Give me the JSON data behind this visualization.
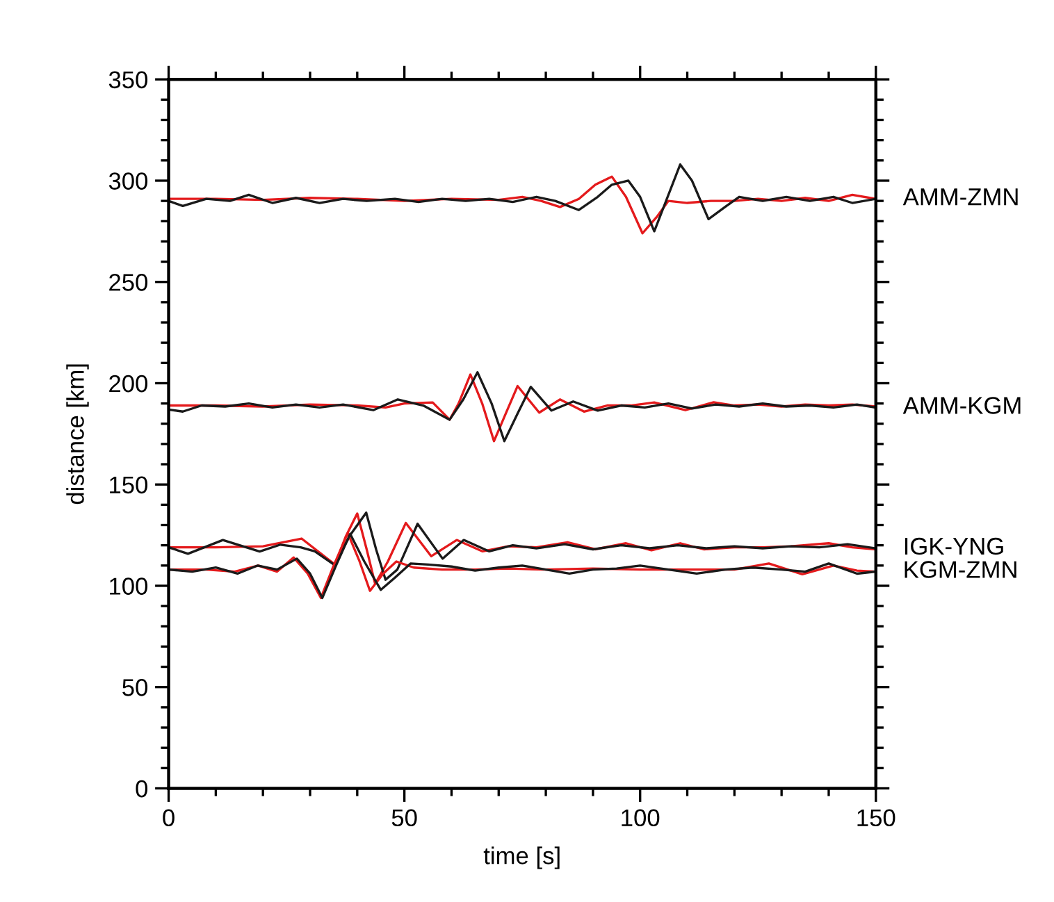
{
  "chart_data": {
    "type": "line",
    "xlabel": "time [s]",
    "ylabel": "distance [km]",
    "xlim": [
      0,
      150
    ],
    "ylim": [
      0,
      350
    ],
    "xticks": [
      0,
      {
        "value": 10,
        "label": null
      },
      {
        "value": 20,
        "label": null
      },
      {
        "value": 30,
        "label": null
      },
      {
        "value": 40,
        "label": null
      },
      50,
      {
        "value": 60,
        "label": null
      },
      {
        "value": 70,
        "label": null
      },
      {
        "value": 80,
        "label": null
      },
      {
        "value": 90,
        "label": null
      },
      100,
      {
        "value": 110,
        "label": null
      },
      {
        "value": 120,
        "label": null
      },
      {
        "value": 130,
        "label": null
      },
      {
        "value": 140,
        "label": null
      },
      150
    ],
    "yticks": [
      0,
      {
        "value": 10,
        "label": null
      },
      {
        "value": 20,
        "label": null
      },
      {
        "value": 30,
        "label": null
      },
      {
        "value": 40,
        "label": null
      },
      50,
      {
        "value": 60,
        "label": null
      },
      {
        "value": 70,
        "label": null
      },
      {
        "value": 80,
        "label": null
      },
      {
        "value": 90,
        "label": null
      },
      100,
      {
        "value": 110,
        "label": null
      },
      {
        "value": 120,
        "label": null
      },
      {
        "value": 130,
        "label": null
      },
      {
        "value": 140,
        "label": null
      },
      150,
      {
        "value": 160,
        "label": null
      },
      {
        "value": 170,
        "label": null
      },
      {
        "value": 180,
        "label": null
      },
      {
        "value": 190,
        "label": null
      },
      200,
      {
        "value": 210,
        "label": null
      },
      {
        "value": 220,
        "label": null
      },
      {
        "value": 230,
        "label": null
      },
      {
        "value": 240,
        "label": null
      },
      250,
      {
        "value": 260,
        "label": null
      },
      {
        "value": 270,
        "label": null
      },
      {
        "value": 280,
        "label": null
      },
      {
        "value": 290,
        "label": null
      },
      300,
      {
        "value": 310,
        "label": null
      },
      {
        "value": 320,
        "label": null
      },
      {
        "value": 330,
        "label": null
      },
      {
        "value": 340,
        "label": null
      },
      350
    ],
    "marker": "none",
    "line_style": "solid",
    "series": [
      {
        "color": "#e41a1c",
        "x": [
          0,
          10,
          20,
          30,
          40,
          50,
          60,
          70,
          75,
          79,
          83,
          87,
          90.5,
          94,
          97,
          100.5,
          103.5,
          106,
          110,
          115,
          120,
          125,
          130,
          135,
          140,
          145,
          150
        ],
        "values": [
          291,
          291,
          290.5,
          291.5,
          291,
          290,
          291,
          290.5,
          292,
          290,
          287,
          291,
          298,
          302,
          292,
          274,
          282,
          290,
          289,
          290,
          290,
          291,
          290,
          291.5,
          290,
          293,
          291
        ]
      },
      {
        "name": "AMM-ZMN",
        "color": "#1a1a1a",
        "x": [
          0,
          3,
          8,
          13,
          17,
          22,
          27,
          32,
          37,
          42,
          48,
          53,
          58,
          63,
          68,
          73,
          78,
          82,
          87,
          91,
          94,
          97.5,
          100,
          103,
          105.5,
          108.5,
          111,
          114.5,
          118,
          121,
          126,
          131,
          136,
          141,
          145,
          150
        ],
        "values": [
          290,
          287.5,
          291,
          290,
          293,
          289,
          291.5,
          289,
          291,
          290,
          291,
          289.5,
          291,
          290,
          291,
          289.5,
          292,
          290,
          285.5,
          292,
          298,
          300,
          292,
          275,
          290,
          308,
          300,
          281,
          287,
          292,
          290,
          292,
          290,
          292,
          289,
          291
        ]
      },
      {
        "color": "#e41a1c",
        "x": [
          0,
          10,
          20,
          30,
          40,
          46,
          50,
          56,
          59.6,
          61.5,
          64,
          66.5,
          69,
          71.5,
          74,
          78.6,
          83,
          88.1,
          93,
          98,
          103,
          109.6,
          115.6,
          120,
          125,
          130,
          135,
          140,
          145,
          150
        ],
        "values": [
          189,
          189,
          188.5,
          189.5,
          189,
          188,
          190,
          190.5,
          182,
          190,
          204.3,
          190,
          171.4,
          185,
          198.6,
          185.5,
          192,
          186,
          189,
          189,
          190.5,
          186.7,
          190.6,
          189,
          189.5,
          188.5,
          189.5,
          189,
          189.5,
          188.5
        ]
      },
      {
        "name": "AMM-KGM",
        "color": "#1a1a1a",
        "x": [
          0,
          3,
          7,
          12,
          17,
          22,
          27,
          32,
          37,
          43.4,
          48.6,
          54,
          59.6,
          62.5,
          65.5,
          68.5,
          71.2,
          74,
          76.8,
          81.2,
          85.8,
          91,
          96,
          101,
          106,
          111,
          116,
          121,
          126,
          131,
          136,
          141,
          146,
          150
        ],
        "values": [
          187,
          186,
          189,
          188.5,
          190,
          188,
          189.5,
          188,
          189.5,
          186.7,
          192,
          189,
          182,
          192,
          205.4,
          190,
          171.4,
          185,
          198.2,
          186.5,
          191,
          186.5,
          189,
          188,
          190,
          187.5,
          189.5,
          188.5,
          190,
          188.5,
          189,
          188,
          189.5,
          188
        ]
      },
      {
        "color": "#e41a1c",
        "x": [
          0,
          10,
          20,
          28.2,
          35.3,
          37.5,
          40,
          42,
          43.8,
          46.5,
          50.3,
          55.7,
          61.1,
          66.6,
          72,
          78,
          84.6,
          90.5,
          97,
          102.4,
          108.5,
          113.5,
          120,
          126,
          132,
          140,
          145,
          150
        ],
        "values": [
          119,
          119,
          119.5,
          123.3,
          110.4,
          124,
          135.7,
          118,
          101,
          112,
          131,
          114.6,
          122.6,
          117,
          119.5,
          119,
          121.5,
          118,
          121,
          117.5,
          121,
          118,
          119,
          119,
          119.5,
          121,
          119,
          118
        ]
      },
      {
        "name": "IGK-YNG",
        "color": "#1a1a1a",
        "x": [
          0,
          4.1,
          11.5,
          19.3,
          23.7,
          28,
          31,
          35.1,
          38.5,
          41.9,
          44,
          46,
          48.5,
          52.8,
          58.1,
          62.6,
          68,
          73,
          78,
          84,
          90,
          96,
          102,
          108,
          114,
          120,
          126,
          132,
          138,
          144,
          150
        ],
        "values": [
          119,
          115.8,
          122.6,
          116.9,
          120.3,
          119,
          117,
          110.4,
          125,
          136.1,
          118,
          103,
          108,
          130.6,
          113.4,
          122.6,
          117,
          120,
          118.5,
          120.5,
          118,
          120,
          118.5,
          120,
          118.5,
          119.5,
          118.5,
          119.5,
          119,
          120.5,
          118.5
        ]
      },
      {
        "color": "#e41a1c",
        "x": [
          0,
          8,
          14,
          19,
          23,
          26.5,
          29.5,
          32.3,
          35,
          38,
          40.5,
          42.7,
          45.5,
          48.3,
          52,
          58,
          65,
          72,
          80,
          90,
          100,
          110,
          120,
          127.3,
          134.4,
          141,
          146,
          150
        ],
        "values": [
          108,
          108,
          107,
          110,
          107,
          114,
          106,
          94,
          110,
          126,
          112,
          97.5,
          106,
          112,
          109,
          108,
          108,
          108.5,
          108,
          108.5,
          108,
          108,
          108,
          111,
          105.7,
          110,
          107.5,
          107
        ]
      },
      {
        "name": "KGM-ZMN",
        "color": "#1a1a1a",
        "x": [
          0,
          5,
          10,
          14.6,
          18.9,
          23,
          27.2,
          30,
          32.6,
          35.5,
          38.5,
          41.5,
          45,
          48,
          51.3,
          55,
          60,
          65,
          70,
          75,
          80,
          85,
          90,
          95,
          100,
          106,
          112,
          118,
          124,
          130,
          135,
          140,
          146,
          150
        ],
        "values": [
          108,
          107,
          109,
          106,
          110,
          108,
          113.4,
          106,
          94,
          110,
          125.6,
          112,
          98,
          104,
          111,
          110.5,
          109.5,
          107.5,
          109,
          110,
          108,
          106,
          108,
          108.5,
          110,
          108,
          106,
          108,
          109,
          108,
          107,
          111,
          106,
          107
        ]
      }
    ]
  }
}
